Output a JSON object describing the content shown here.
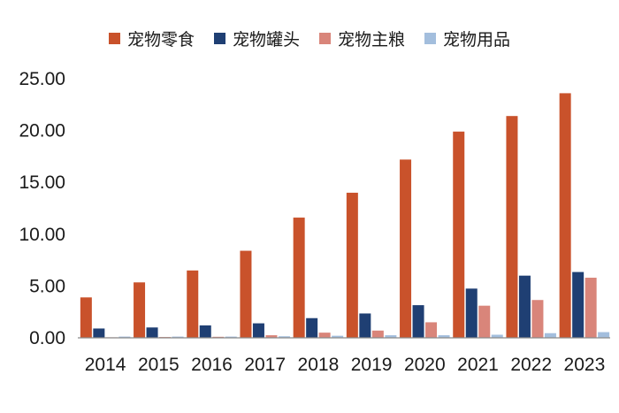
{
  "chart_data": {
    "type": "bar",
    "categories": [
      "2014",
      "2015",
      "2016",
      "2017",
      "2018",
      "2019",
      "2020",
      "2021",
      "2022",
      "2023"
    ],
    "series": [
      {
        "name": "宠物零食",
        "color": "#C9522B",
        "values": [
          3.9,
          5.35,
          6.5,
          8.4,
          11.6,
          14.0,
          17.2,
          19.9,
          21.4,
          23.6
        ]
      },
      {
        "name": "宠物罐头",
        "color": "#1F3F73",
        "values": [
          0.9,
          1.0,
          1.2,
          1.4,
          1.9,
          2.35,
          3.15,
          4.75,
          6.0,
          6.35
        ]
      },
      {
        "name": "宠物主粮",
        "color": "#D9857A",
        "values": [
          0.05,
          0.08,
          0.1,
          0.25,
          0.5,
          0.7,
          1.5,
          3.1,
          3.65,
          5.8
        ]
      },
      {
        "name": "宠物用品",
        "color": "#A3BEDD",
        "values": [
          0.12,
          0.12,
          0.12,
          0.15,
          0.2,
          0.25,
          0.25,
          0.3,
          0.45,
          0.55
        ]
      }
    ],
    "ylim": [
      0,
      25
    ],
    "yticks": [
      "0.00",
      "5.00",
      "10.00",
      "15.00",
      "20.00",
      "25.00"
    ],
    "grid": false,
    "legend_position": "top"
  }
}
